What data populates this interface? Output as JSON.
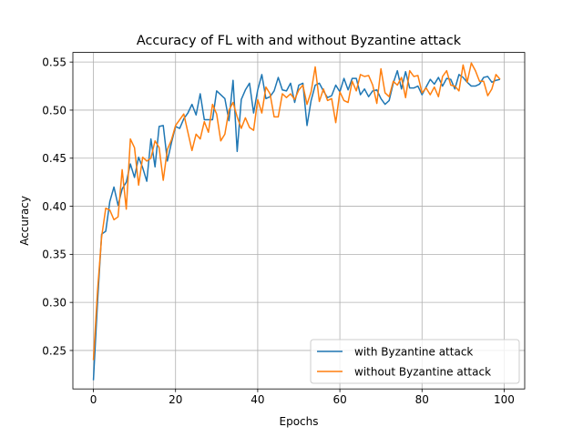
{
  "chart_data": {
    "type": "line",
    "title": "Accuracy of FL with and without Byzantine attack",
    "xlabel": "Epochs",
    "ylabel": "Accuracy",
    "xlim": [
      -5,
      105
    ],
    "ylim": [
      0.21,
      0.56
    ],
    "xticks": [
      0,
      20,
      40,
      60,
      80,
      100
    ],
    "yticks": [
      0.25,
      0.3,
      0.35,
      0.4,
      0.45,
      0.5,
      0.55
    ],
    "grid": true,
    "legend_position": "lower-right",
    "series": [
      {
        "name": "with Byzantine attack",
        "color": "#1f77b4",
        "values": [
          0.219,
          0.3,
          0.371,
          0.374,
          0.405,
          0.42,
          0.401,
          0.418,
          0.425,
          0.444,
          0.43,
          0.451,
          0.44,
          0.426,
          0.47,
          0.441,
          0.483,
          0.484,
          0.447,
          0.466,
          0.483,
          0.481,
          0.491,
          0.497,
          0.506,
          0.495,
          0.517,
          0.49,
          0.49,
          0.49,
          0.52,
          0.516,
          0.512,
          0.489,
          0.531,
          0.457,
          0.511,
          0.521,
          0.528,
          0.497,
          0.521,
          0.537,
          0.512,
          0.514,
          0.52,
          0.534,
          0.521,
          0.52,
          0.528,
          0.508,
          0.526,
          0.528,
          0.484,
          0.51,
          0.526,
          0.528,
          0.52,
          0.513,
          0.515,
          0.526,
          0.519,
          0.533,
          0.521,
          0.533,
          0.533,
          0.516,
          0.522,
          0.514,
          0.52,
          0.521,
          0.512,
          0.506,
          0.51,
          0.528,
          0.541,
          0.522,
          0.54,
          0.523,
          0.523,
          0.525,
          0.516,
          0.524,
          0.532,
          0.527,
          0.534,
          0.525,
          0.533,
          0.532,
          0.522,
          0.537,
          0.534,
          0.529,
          0.525,
          0.525,
          0.527,
          0.534,
          0.535,
          0.529,
          0.531,
          0.532
        ]
      },
      {
        "name": "without Byzantine attack",
        "color": "#ff7f0e",
        "values": [
          0.24,
          0.312,
          0.368,
          0.398,
          0.396,
          0.386,
          0.389,
          0.438,
          0.397,
          0.47,
          0.461,
          0.422,
          0.451,
          0.447,
          0.45,
          0.468,
          0.461,
          0.427,
          0.459,
          0.469,
          0.484,
          0.49,
          0.496,
          0.477,
          0.458,
          0.475,
          0.47,
          0.488,
          0.477,
          0.506,
          0.496,
          0.468,
          0.475,
          0.5,
          0.508,
          0.493,
          0.481,
          0.492,
          0.482,
          0.479,
          0.511,
          0.497,
          0.524,
          0.517,
          0.493,
          0.493,
          0.517,
          0.513,
          0.517,
          0.511,
          0.521,
          0.526,
          0.506,
          0.519,
          0.545,
          0.509,
          0.522,
          0.51,
          0.512,
          0.487,
          0.519,
          0.51,
          0.508,
          0.53,
          0.52,
          0.537,
          0.535,
          0.536,
          0.526,
          0.507,
          0.543,
          0.518,
          0.514,
          0.53,
          0.526,
          0.534,
          0.513,
          0.541,
          0.535,
          0.536,
          0.518,
          0.523,
          0.516,
          0.524,
          0.514,
          0.535,
          0.541,
          0.526,
          0.525,
          0.52,
          0.547,
          0.529,
          0.549,
          0.541,
          0.53,
          0.53,
          0.515,
          0.522,
          0.537,
          0.532
        ]
      }
    ]
  }
}
